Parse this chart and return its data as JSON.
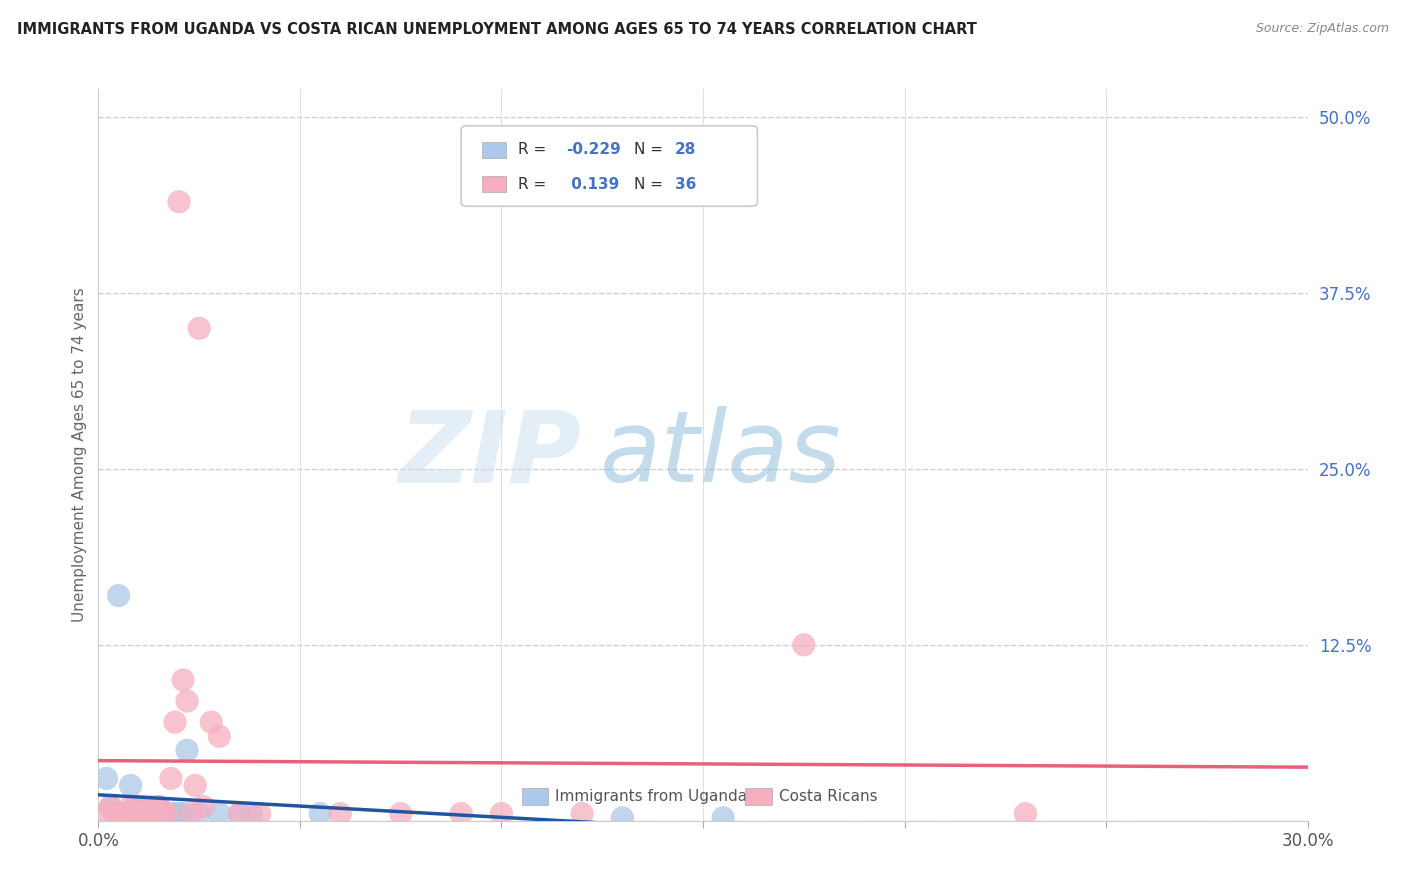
{
  "title": "IMMIGRANTS FROM UGANDA VS COSTA RICAN UNEMPLOYMENT AMONG AGES 65 TO 74 YEARS CORRELATION CHART",
  "source": "Source: ZipAtlas.com",
  "ylabel": "Unemployment Among Ages 65 to 74 years",
  "x_min": 0.0,
  "x_max": 0.3,
  "y_min": 0.0,
  "y_max": 0.52,
  "x_ticks": [
    0.0,
    0.05,
    0.1,
    0.15,
    0.2,
    0.25,
    0.3
  ],
  "x_tick_labels": [
    "0.0%",
    "",
    "",
    "",
    "",
    "",
    "30.0%"
  ],
  "y_ticks_right": [
    0.0,
    0.125,
    0.25,
    0.375,
    0.5
  ],
  "y_tick_labels_right": [
    "",
    "12.5%",
    "25.0%",
    "37.5%",
    "50.0%"
  ],
  "r_uganda": -0.229,
  "n_uganda": 28,
  "r_costa": 0.139,
  "n_costa": 36,
  "blue_color": "#adc8e8",
  "pink_color": "#f5afc0",
  "blue_line_color": "#2255a0",
  "pink_line_color": "#e8607a",
  "legend_blue_label": "Immigrants from Uganda",
  "legend_pink_label": "Costa Ricans",
  "uganda_x": [
    0.002,
    0.003,
    0.004,
    0.005,
    0.006,
    0.007,
    0.008,
    0.009,
    0.01,
    0.011,
    0.012,
    0.013,
    0.014,
    0.015,
    0.016,
    0.017,
    0.018,
    0.019,
    0.02,
    0.021,
    0.022,
    0.025,
    0.03,
    0.035,
    0.038,
    0.055,
    0.13,
    0.155
  ],
  "uganda_y": [
    0.03,
    0.01,
    0.005,
    0.16,
    0.005,
    0.005,
    0.025,
    0.01,
    0.005,
    0.01,
    0.005,
    0.005,
    0.005,
    0.01,
    0.005,
    0.005,
    0.005,
    0.005,
    0.005,
    0.005,
    0.05,
    0.005,
    0.005,
    0.005,
    0.005,
    0.005,
    0.002,
    0.002
  ],
  "costa_x": [
    0.002,
    0.003,
    0.004,
    0.005,
    0.006,
    0.007,
    0.008,
    0.009,
    0.01,
    0.011,
    0.012,
    0.013,
    0.014,
    0.015,
    0.016,
    0.017,
    0.018,
    0.019,
    0.02,
    0.021,
    0.022,
    0.023,
    0.024,
    0.025,
    0.026,
    0.028,
    0.03,
    0.035,
    0.04,
    0.06,
    0.075,
    0.09,
    0.1,
    0.12,
    0.175,
    0.23
  ],
  "costa_y": [
    0.005,
    0.01,
    0.005,
    0.005,
    0.005,
    0.005,
    0.01,
    0.005,
    0.01,
    0.005,
    0.005,
    0.01,
    0.005,
    0.01,
    0.005,
    0.005,
    0.03,
    0.07,
    0.44,
    0.1,
    0.085,
    0.005,
    0.025,
    0.35,
    0.01,
    0.07,
    0.06,
    0.005,
    0.005,
    0.005,
    0.005,
    0.005,
    0.005,
    0.005,
    0.125,
    0.005
  ],
  "watermark_zip": "ZIP",
  "watermark_atlas": "atlas",
  "grid_color": "#d0d0d0"
}
